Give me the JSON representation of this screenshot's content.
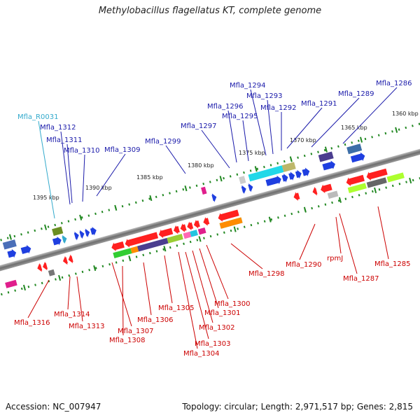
{
  "header": {
    "title": "Methylobacillus flagellatus KT, complete genome"
  },
  "footer": {
    "accession": "Accession: NC_007947",
    "topology": "Topology: circular; Length: 2,971,517 bp; Genes: 2,815"
  },
  "colors": {
    "forward_label": "#1a1aaa",
    "reverse_label": "#cc0000",
    "rna_label": "#33aacc",
    "backbone": "#777777",
    "tick": "#228822"
  },
  "scale": {
    "ticks": [
      {
        "label": "1360 kbp",
        "kbp": 1360
      },
      {
        "label": "1365 kbp",
        "kbp": 1365
      },
      {
        "label": "1370 kbp",
        "kbp": 1370
      },
      {
        "label": "1375 kbp",
        "kbp": 1375
      },
      {
        "label": "1380 kbp",
        "kbp": 1380
      },
      {
        "label": "1385 kbp",
        "kbp": 1385
      },
      {
        "label": "1390 kbp",
        "kbp": 1390
      },
      {
        "label": "1395 kbp",
        "kbp": 1395
      }
    ]
  },
  "genes": {
    "forward": [
      {
        "label": "Mfla_R0031",
        "type": "rna"
      },
      {
        "label": "Mfla_1312"
      },
      {
        "label": "Mfla_1311"
      },
      {
        "label": "Mfla_1310"
      },
      {
        "label": "Mfla_1309"
      },
      {
        "label": "Mfla_1299"
      },
      {
        "label": "Mfla_1297"
      },
      {
        "label": "Mfla_1296"
      },
      {
        "label": "Mfla_1295"
      },
      {
        "label": "Mfla_1294"
      },
      {
        "label": "Mfla_1293"
      },
      {
        "label": "Mfla_1292"
      },
      {
        "label": "Mfla_1291"
      },
      {
        "label": "Mfla_1289"
      },
      {
        "label": "Mfla_1286"
      }
    ],
    "reverse": [
      {
        "label": "Mfla_1316"
      },
      {
        "label": "Mfla_1314"
      },
      {
        "label": "Mfla_1313"
      },
      {
        "label": "Mfla_1307"
      },
      {
        "label": "Mfla_1308"
      },
      {
        "label": "Mfla_1306"
      },
      {
        "label": "Mfla_1305"
      },
      {
        "label": "Mfla_1304"
      },
      {
        "label": "Mfla_1303"
      },
      {
        "label": "Mfla_1302"
      },
      {
        "label": "Mfla_1301"
      },
      {
        "label": "Mfla_1300"
      },
      {
        "label": "Mfla_1298"
      },
      {
        "label": "Mfla_1290"
      },
      {
        "label": "rpmJ"
      },
      {
        "label": "Mfla_1287"
      },
      {
        "label": "Mfla_1285"
      }
    ]
  }
}
